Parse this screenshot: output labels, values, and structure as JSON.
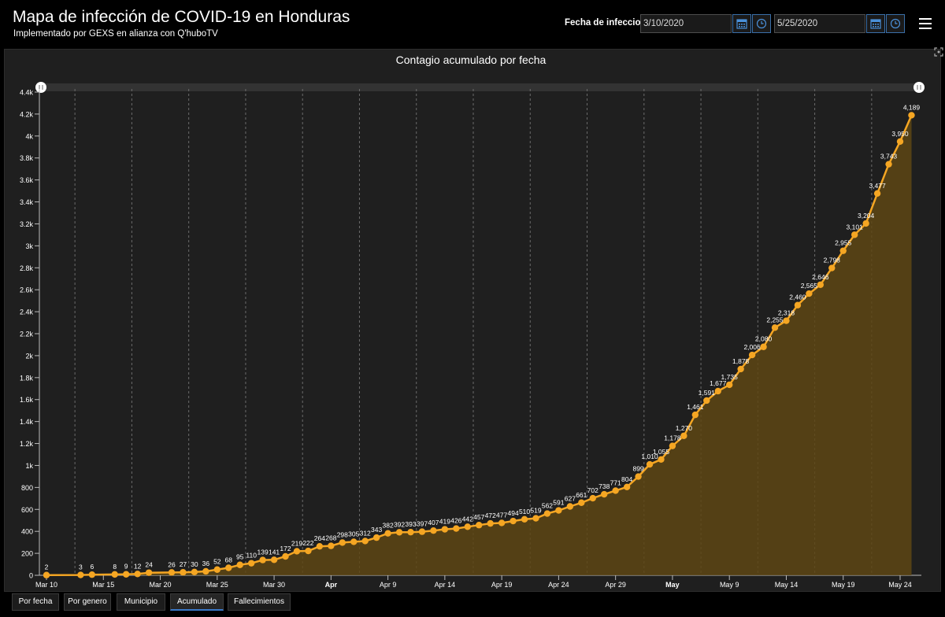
{
  "header": {
    "title": "Mapa de infección de COVID-19 en Honduras",
    "subtitle": "Implementado por GEXS en alianza con Q'huboTV"
  },
  "filter": {
    "label": "Fecha de infeccion",
    "start_date": "3/10/2020",
    "end_date": "5/25/2020",
    "calendar_icon": "calendar-icon",
    "clock_icon": "clock-icon",
    "menu_icon": "hamburger-menu-icon"
  },
  "tabs": [
    {
      "label": "Por fecha",
      "active": false
    },
    {
      "label": "Por genero",
      "active": false
    },
    {
      "label": "Municipio",
      "active": false
    },
    {
      "label": "Acumulado",
      "active": true
    },
    {
      "label": "Fallecimientos",
      "active": false
    }
  ],
  "colors": {
    "line": "#f5a623",
    "area": "#5e4714",
    "grid": "#6b6b6b",
    "background": "#1f1f1f",
    "tab_active": "#3a79c8"
  },
  "chart_data": {
    "type": "area",
    "title": "Contagio acumulado por fecha",
    "xlabel": "",
    "ylabel": "",
    "x_start": "2020-03-10",
    "x_end": "2020-05-24",
    "ylim": [
      0,
      4400
    ],
    "y_ticks": [
      0,
      200,
      400,
      600,
      800,
      "1k",
      "1.2k",
      "1.4k",
      "1.6k",
      "1.8k",
      "2k",
      "2.2k",
      "2.4k",
      "2.6k",
      "2.8k",
      "3k",
      "3.2k",
      "3.4k",
      "3.6k",
      "3.8k",
      "4k",
      "4.2k",
      "4.4k"
    ],
    "x_ticks": [
      "Mar 10",
      "Mar 15",
      "Mar 20",
      "Mar 25",
      "Mar 30",
      "Apr",
      "Apr 9",
      "Apr 14",
      "Apr 19",
      "Apr 24",
      "Apr 29",
      "May",
      "May 9",
      "May 14",
      "May 19",
      "May 24"
    ],
    "grid": true,
    "series": [
      {
        "name": "",
        "points": [
          {
            "x": "2020-03-10",
            "y": 2,
            "label": "2"
          },
          {
            "x": "2020-03-13",
            "y": 3,
            "label": "3"
          },
          {
            "x": "2020-03-14",
            "y": 6,
            "label": "6"
          },
          {
            "x": "2020-03-16",
            "y": 8,
            "label": "8"
          },
          {
            "x": "2020-03-17",
            "y": 9,
            "label": "9"
          },
          {
            "x": "2020-03-18",
            "y": 12,
            "label": "12"
          },
          {
            "x": "2020-03-19",
            "y": 24,
            "label": "24"
          },
          {
            "x": "2020-03-21",
            "y": 26,
            "label": "26"
          },
          {
            "x": "2020-03-22",
            "y": 27,
            "label": "27"
          },
          {
            "x": "2020-03-23",
            "y": 30,
            "label": "30"
          },
          {
            "x": "2020-03-24",
            "y": 36,
            "label": "36"
          },
          {
            "x": "2020-03-25",
            "y": 52,
            "label": "52"
          },
          {
            "x": "2020-03-26",
            "y": 68,
            "label": "68"
          },
          {
            "x": "2020-03-27",
            "y": 95,
            "label": "95"
          },
          {
            "x": "2020-03-28",
            "y": 110,
            "label": "110"
          },
          {
            "x": "2020-03-29",
            "y": 139,
            "label": "139"
          },
          {
            "x": "2020-03-30",
            "y": 141,
            "label": "141"
          },
          {
            "x": "2020-03-31",
            "y": 172,
            "label": "172"
          },
          {
            "x": "2020-04-01",
            "y": 219,
            "label": "219"
          },
          {
            "x": "2020-04-02",
            "y": 222,
            "label": "222"
          },
          {
            "x": "2020-04-03",
            "y": 264,
            "label": "264"
          },
          {
            "x": "2020-04-04",
            "y": 268,
            "label": "268"
          },
          {
            "x": "2020-04-05",
            "y": 298,
            "label": "298"
          },
          {
            "x": "2020-04-06",
            "y": 305,
            "label": "305"
          },
          {
            "x": "2020-04-07",
            "y": 312,
            "label": "312"
          },
          {
            "x": "2020-04-08",
            "y": 343,
            "label": "343"
          },
          {
            "x": "2020-04-09",
            "y": 382,
            "label": "382"
          },
          {
            "x": "2020-04-10",
            "y": 392,
            "label": "392"
          },
          {
            "x": "2020-04-11",
            "y": 393,
            "label": "393"
          },
          {
            "x": "2020-04-12",
            "y": 397,
            "label": "397"
          },
          {
            "x": "2020-04-13",
            "y": 407,
            "label": "407"
          },
          {
            "x": "2020-04-14",
            "y": 419,
            "label": "419"
          },
          {
            "x": "2020-04-15",
            "y": 426,
            "label": "426"
          },
          {
            "x": "2020-04-16",
            "y": 442,
            "label": "442"
          },
          {
            "x": "2020-04-17",
            "y": 457,
            "label": "457"
          },
          {
            "x": "2020-04-18",
            "y": 472,
            "label": "472"
          },
          {
            "x": "2020-04-19",
            "y": 477,
            "label": "477"
          },
          {
            "x": "2020-04-20",
            "y": 494,
            "label": "494"
          },
          {
            "x": "2020-04-21",
            "y": 510,
            "label": "510"
          },
          {
            "x": "2020-04-22",
            "y": 519,
            "label": "519"
          },
          {
            "x": "2020-04-23",
            "y": 562,
            "label": "562"
          },
          {
            "x": "2020-04-24",
            "y": 591,
            "label": "591"
          },
          {
            "x": "2020-04-25",
            "y": 627,
            "label": "627"
          },
          {
            "x": "2020-04-26",
            "y": 661,
            "label": "661"
          },
          {
            "x": "2020-04-27",
            "y": 702,
            "label": "702"
          },
          {
            "x": "2020-04-28",
            "y": 738,
            "label": "738"
          },
          {
            "x": "2020-04-29",
            "y": 771,
            "label": "771"
          },
          {
            "x": "2020-04-30",
            "y": 804,
            "label": "804"
          },
          {
            "x": "2020-05-01",
            "y": 899,
            "label": "899"
          },
          {
            "x": "2020-05-02",
            "y": 1010,
            "label": "1,010"
          },
          {
            "x": "2020-05-03",
            "y": 1055,
            "label": "1,055"
          },
          {
            "x": "2020-05-04",
            "y": 1178,
            "label": "1,178"
          },
          {
            "x": "2020-05-05",
            "y": 1270,
            "label": "1,270"
          },
          {
            "x": "2020-05-06",
            "y": 1461,
            "label": "1,461"
          },
          {
            "x": "2020-05-07",
            "y": 1591,
            "label": "1,591"
          },
          {
            "x": "2020-05-08",
            "y": 1677,
            "label": "1,677"
          },
          {
            "x": "2020-05-09",
            "y": 1735,
            "label": "1,735"
          },
          {
            "x": "2020-05-10",
            "y": 1878,
            "label": "1,878"
          },
          {
            "x": "2020-05-11",
            "y": 2006,
            "label": "2,006"
          },
          {
            "x": "2020-05-12",
            "y": 2080,
            "label": "2,080"
          },
          {
            "x": "2020-05-13",
            "y": 2255,
            "label": "2,255"
          },
          {
            "x": "2020-05-14",
            "y": 2318,
            "label": "2,318"
          },
          {
            "x": "2020-05-15",
            "y": 2460,
            "label": "2,460"
          },
          {
            "x": "2020-05-16",
            "y": 2565,
            "label": "2,565"
          },
          {
            "x": "2020-05-17",
            "y": 2646,
            "label": "2,646"
          },
          {
            "x": "2020-05-18",
            "y": 2798,
            "label": "2,798"
          },
          {
            "x": "2020-05-19",
            "y": 2955,
            "label": "2,955"
          },
          {
            "x": "2020-05-20",
            "y": 3101,
            "label": "3,101"
          },
          {
            "x": "2020-05-21",
            "y": 3204,
            "label": "3,204"
          },
          {
            "x": "2020-05-22",
            "y": 3477,
            "label": "3,477"
          },
          {
            "x": "2020-05-23",
            "y": 3743,
            "label": "3,743"
          },
          {
            "x": "2020-05-24",
            "y": 3950,
            "label": "3,950"
          },
          {
            "x": "2020-05-25",
            "y": 4189,
            "label": "4,189"
          }
        ]
      }
    ]
  }
}
